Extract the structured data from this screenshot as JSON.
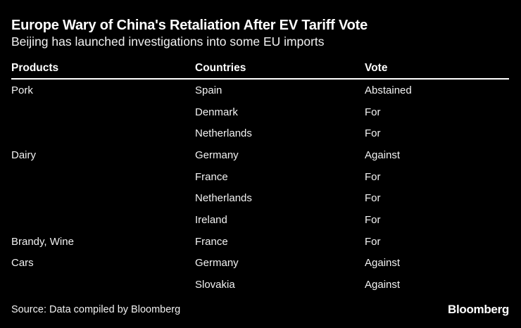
{
  "chart_data": {
    "type": "table",
    "title": "Europe Wary of China's Retaliation After EV Tariff Vote",
    "subtitle": "Beijing has launched investigations into some EU imports",
    "columns": [
      "Products",
      "Countries",
      "Vote"
    ],
    "rows": [
      {
        "product": "Pork",
        "country": "Spain",
        "vote": "Abstained"
      },
      {
        "product": "",
        "country": "Denmark",
        "vote": "For"
      },
      {
        "product": "",
        "country": "Netherlands",
        "vote": "For"
      },
      {
        "product": "Dairy",
        "country": "Germany",
        "vote": "Against"
      },
      {
        "product": "",
        "country": "France",
        "vote": "For"
      },
      {
        "product": "",
        "country": "Netherlands",
        "vote": "For"
      },
      {
        "product": "",
        "country": "Ireland",
        "vote": "For"
      },
      {
        "product": "Brandy, Wine",
        "country": "France",
        "vote": "For"
      },
      {
        "product": "Cars",
        "country": "Germany",
        "vote": "Against"
      },
      {
        "product": "",
        "country": "Slovakia",
        "vote": "Against"
      }
    ],
    "source": "Source: Data compiled by Bloomberg",
    "brand": "Bloomberg",
    "layout": {
      "legend": "none",
      "grid": "off",
      "header_rule_color": "#ffffff"
    }
  },
  "colors": {
    "background": "#000000",
    "title_text": "#ffffff",
    "body_text": "#f2f2f2",
    "rule": "#ffffff"
  }
}
